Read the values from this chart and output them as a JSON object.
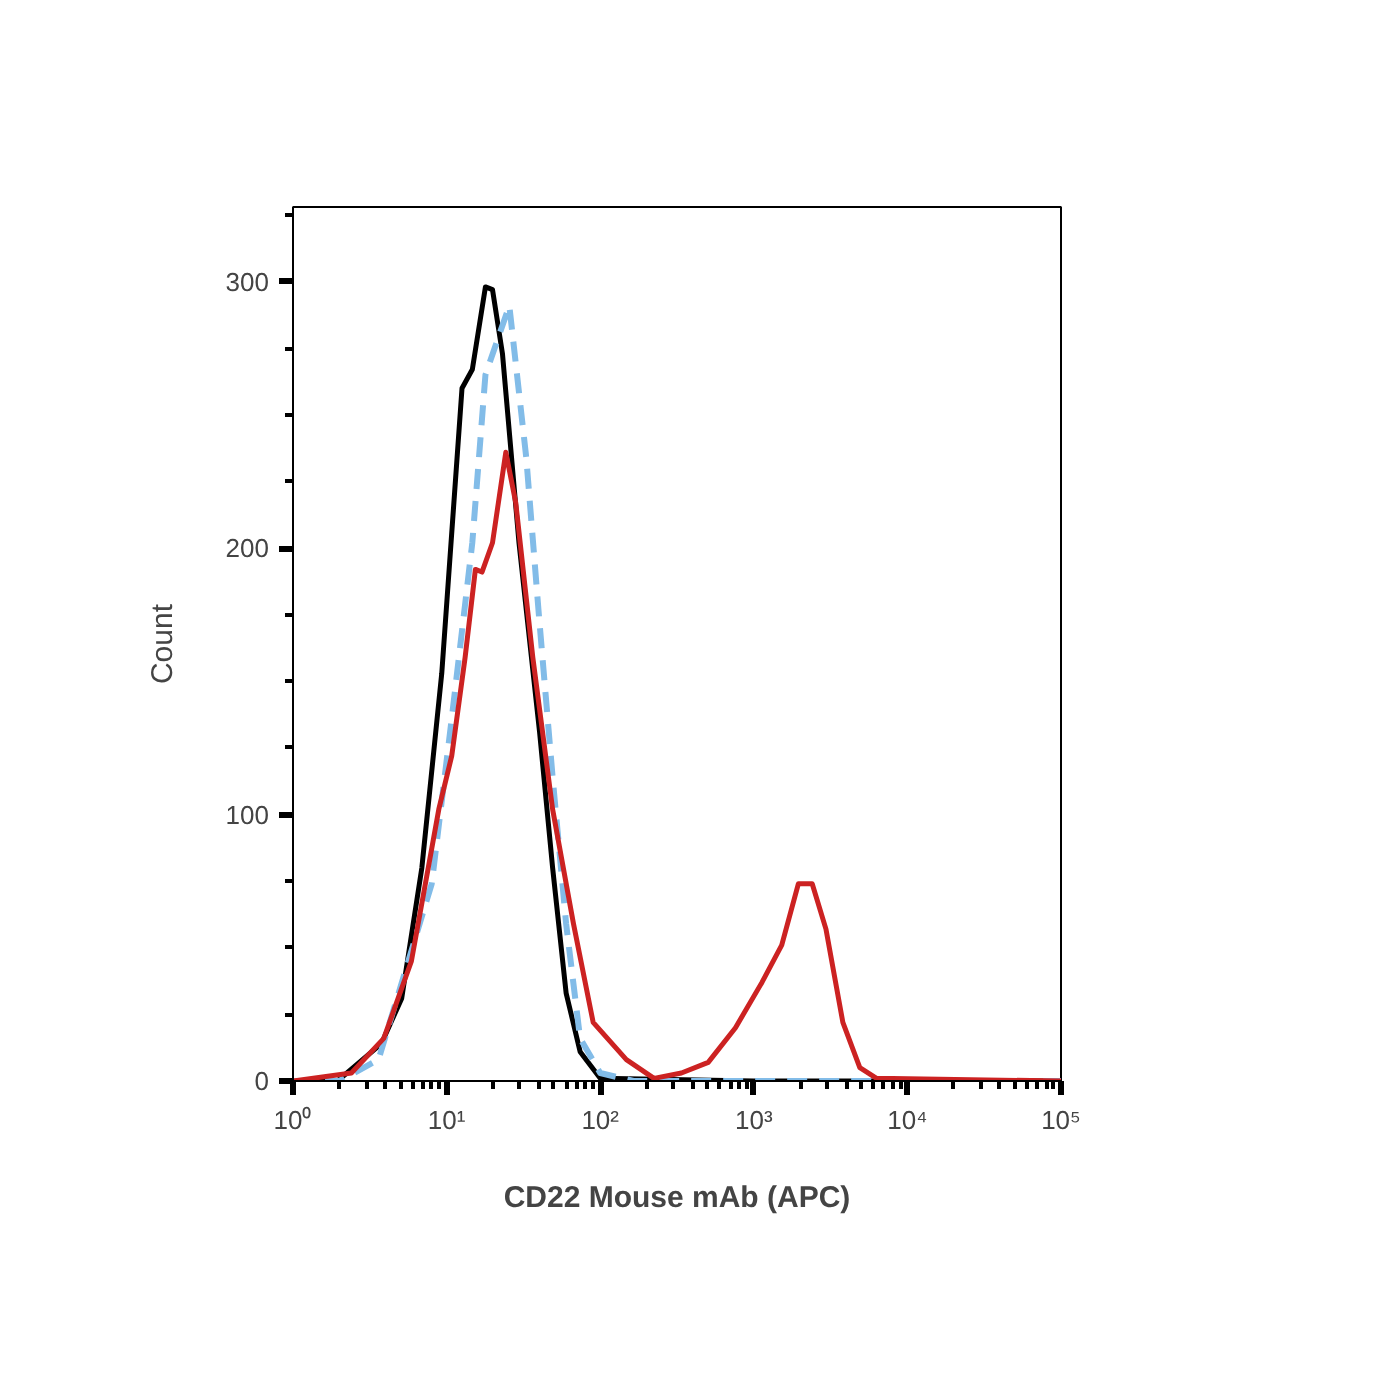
{
  "chart_data": {
    "type": "line",
    "xlabel": "CD22 Mouse mAb (APC)",
    "ylabel": "Count",
    "log": "x",
    "xlim": [
      1,
      100000
    ],
    "ylim": [
      0,
      328
    ],
    "xticks": [
      {
        "value": 1,
        "label": "10⁰"
      },
      {
        "value": 10,
        "label": "10¹"
      },
      {
        "value": 100,
        "label": "10²"
      },
      {
        "value": 1000,
        "label": "10³"
      },
      {
        "value": 10000,
        "label": "10⁴"
      },
      {
        "value": 100000,
        "label": "10⁵"
      }
    ],
    "yticks": [
      0,
      100,
      200,
      300
    ],
    "grid": false,
    "marker": "none",
    "series": [
      {
        "color": "#000000",
        "line_style": "solid",
        "x": [
          1,
          1.95,
          3.76,
          5.1,
          6.9,
          9.3,
          12.6,
          14.7,
          17.9,
          19.9,
          23.1,
          29.6,
          40.3,
          49,
          60,
          74,
          100,
          1000,
          100000
        ],
        "values": [
          0,
          0,
          14,
          31,
          80,
          153,
          260,
          267,
          298,
          297,
          273,
          202,
          131,
          80,
          33,
          11,
          1,
          0,
          0
        ]
      },
      {
        "color": "#82bce8",
        "line_style": "dashed",
        "x": [
          1,
          2,
          3.6,
          8,
          10.8,
          14.7,
          17.9,
          25.6,
          33,
          40,
          49,
          60,
          74,
          100,
          165,
          1000,
          100000
        ],
        "values": [
          0,
          0,
          8,
          74,
          136,
          202,
          265,
          291,
          234,
          174,
          114,
          59,
          16,
          3,
          0,
          0,
          0
        ]
      },
      {
        "color": "#cc2222",
        "line_style": "solid",
        "x": [
          1,
          2.4,
          3.9,
          5.9,
          8.9,
          10.8,
          13.2,
          15.4,
          17,
          19.9,
          24.3,
          28.2,
          36.4,
          49,
          67,
          90,
          148,
          224,
          338,
          505,
          760,
          1130,
          1520,
          1950,
          2400,
          2950,
          3800,
          4900,
          6300,
          100000
        ],
        "values": [
          0,
          3,
          16,
          45,
          102,
          122,
          159,
          192,
          191,
          202,
          236,
          217,
          159,
          102,
          59,
          22,
          8,
          1,
          3,
          7,
          20,
          37,
          51,
          74,
          74,
          57,
          22,
          5,
          1,
          0
        ]
      }
    ]
  }
}
